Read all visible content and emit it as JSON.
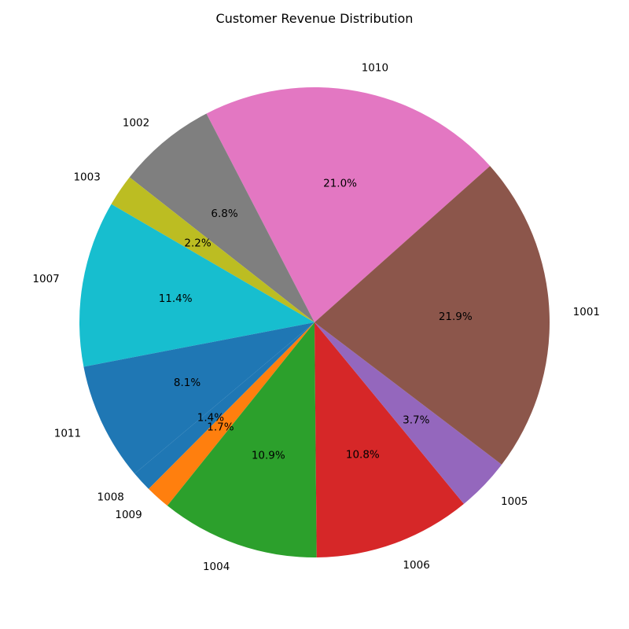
{
  "chart_data": {
    "type": "pie",
    "title": "Customer Revenue Distribution",
    "slices": [
      {
        "label": "1010",
        "percent": 21.0,
        "color": "#e377c2"
      },
      {
        "label": "1002",
        "percent": 6.8,
        "color": "#7f7f7f"
      },
      {
        "label": "1003",
        "percent": 2.2,
        "color": "#bcbd22"
      },
      {
        "label": "1007",
        "percent": 11.4,
        "color": "#17becf"
      },
      {
        "label": "1011",
        "percent": 8.1,
        "color": "#1f77b4"
      },
      {
        "label": "1008",
        "percent": 1.4,
        "color": "#1f77b4"
      },
      {
        "label": "1009",
        "percent": 1.7,
        "color": "#ff7f0e"
      },
      {
        "label": "1004",
        "percent": 10.9,
        "color": "#2ca02c"
      },
      {
        "label": "1006",
        "percent": 10.8,
        "color": "#d62728"
      },
      {
        "label": "1005",
        "percent": 3.7,
        "color": "#9467bd"
      },
      {
        "label": "1001",
        "percent": 21.9,
        "color": "#8c564b"
      }
    ],
    "percent_format": "{v}%",
    "legend": "none"
  }
}
